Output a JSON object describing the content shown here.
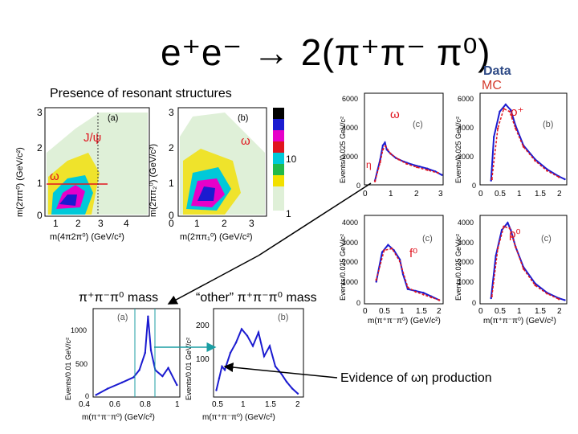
{
  "title": "e⁺e⁻ → 2(π⁺π⁻ π⁰)",
  "legend": {
    "data": "Data",
    "mc": "MC"
  },
  "subtitle": "Presence of resonant structures",
  "annotations": {
    "jpsi": "J/ψ",
    "omega_left": "ω",
    "omega_mid": "ω",
    "omega_right": "ω",
    "rho_plus": "ρ⁺",
    "rho_zero": "ρ⁰",
    "f0": "f⁰",
    "eta_cut": "η",
    "three_pi_mass": "π⁺π⁻π⁰ mass",
    "other_three_pi_mass": "“other” π⁺π⁻π⁰ mass",
    "evidence": "Evidence of ωη production"
  },
  "colors": {
    "data_blue": "#1b1bd0",
    "mc_red": "#e0141e",
    "arrow": "#000000",
    "teal_arrow": "#1b9ea3"
  },
  "chart_data": [
    {
      "type": "heatmap",
      "panel_label": "(a)",
      "xlabel": "m(4π2π⁰) (GeV/c²)",
      "ylabel": "m(2ππ⁰) (GeV/c²)",
      "xlim": [
        0.5,
        4.5
      ],
      "ylim": [
        0,
        3.2
      ],
      "x_ticks": [
        "1",
        "2",
        "3",
        "4"
      ],
      "y_ticks": [
        "0",
        "1",
        "2",
        "3"
      ]
    },
    {
      "type": "heatmap",
      "panel_label": "(b)",
      "xlabel": "m(2ππ₁⁰) (GeV/c²)",
      "ylabel": "m(2ππ₂⁰) (GeV/c²)",
      "xlim": [
        0,
        3.3
      ],
      "ylim": [
        0,
        3.2
      ],
      "x_ticks": [
        "0",
        "1",
        "2",
        "3"
      ],
      "y_ticks": [
        "0",
        "1",
        "2",
        "3"
      ],
      "colorbar_ticks": [
        "10",
        "1"
      ]
    },
    {
      "type": "line",
      "panel_label": "(c)",
      "ylabel": "Events/0.025 GeV/c²",
      "xlim": [
        0,
        3
      ],
      "ylim": [
        0,
        6500
      ],
      "x_ticks": [
        "0",
        "1",
        "2",
        "3"
      ],
      "y_ticks": [
        "0",
        "2000",
        "4000",
        "6000"
      ],
      "series": [
        {
          "name": "Data",
          "x": [
            0.4,
            0.6,
            0.7,
            0.78,
            0.85,
            1.0,
            1.2,
            1.5,
            1.8,
            2.1,
            2.4,
            2.7,
            2.95
          ],
          "y": [
            300,
            1800,
            2800,
            3000,
            2500,
            2200,
            1900,
            1650,
            1450,
            1300,
            1150,
            950,
            700
          ]
        },
        {
          "name": "MC",
          "x": [
            0.4,
            0.6,
            0.7,
            0.8,
            1.0,
            1.3,
            1.6,
            2.0,
            2.4,
            2.8
          ],
          "y": [
            250,
            1600,
            2500,
            2750,
            2200,
            1800,
            1500,
            1250,
            1050,
            850
          ]
        }
      ]
    },
    {
      "type": "line",
      "panel_label": "(b)",
      "ylabel": "Events/0.025 GeV/c²",
      "xlim": [
        0,
        2.2
      ],
      "ylim": [
        0,
        6500
      ],
      "x_ticks": [
        "0",
        "0.5",
        "1",
        "1.5",
        "2"
      ],
      "y_ticks": [
        "0",
        "2000",
        "4000",
        "6000"
      ],
      "series": [
        {
          "name": "Data",
          "x": [
            0.28,
            0.35,
            0.5,
            0.65,
            0.78,
            0.9,
            1.1,
            1.4,
            1.7,
            2.0,
            2.15
          ],
          "y": [
            300,
            3400,
            5200,
            5700,
            5300,
            4200,
            2800,
            1800,
            1100,
            600,
            400
          ]
        },
        {
          "name": "MC",
          "x": [
            0.3,
            0.45,
            0.6,
            0.75,
            0.9,
            1.1,
            1.4,
            1.7,
            2.0
          ],
          "y": [
            400,
            4000,
            5400,
            5200,
            4000,
            2700,
            1700,
            1000,
            550
          ]
        }
      ]
    },
    {
      "type": "line",
      "panel_label": "(c)",
      "ylabel": "Events/0.025 GeV/c²",
      "xlim": [
        0,
        2
      ],
      "ylim": [
        0,
        4800
      ],
      "x_ticks": [
        "0",
        "0.5",
        "1",
        "1.5",
        "2"
      ],
      "y_ticks": [
        "0",
        "1000",
        "2000",
        "3000",
        "4000"
      ],
      "series": [
        {
          "name": "Data",
          "x": [
            0.3,
            0.45,
            0.6,
            0.75,
            0.9,
            0.98,
            1.1,
            1.3,
            1.5,
            1.7,
            1.9
          ],
          "y": [
            1200,
            2800,
            3200,
            2900,
            2400,
            1600,
            800,
            700,
            600,
            400,
            200
          ]
        },
        {
          "name": "MC",
          "x": [
            0.3,
            0.5,
            0.7,
            0.9,
            1.1,
            1.3,
            1.5,
            1.7,
            1.9
          ],
          "y": [
            1300,
            2900,
            3000,
            2300,
            900,
            650,
            500,
            350,
            200
          ]
        }
      ]
    },
    {
      "type": "line",
      "panel_label": "(c)",
      "ylabel": "Events/0.025 GeV/c²",
      "xlim": [
        0,
        2.2
      ],
      "ylim": [
        0,
        4800
      ],
      "x_ticks": [
        "0",
        "0.5",
        "1",
        "1.5",
        "2"
      ],
      "y_ticks": [
        "0",
        "1000",
        "2000",
        "3000",
        "4000"
      ],
      "series": [
        {
          "name": "Data",
          "x": [
            0.28,
            0.4,
            0.55,
            0.7,
            0.78,
            0.9,
            1.1,
            1.4,
            1.7,
            2.0,
            2.15
          ],
          "y": [
            300,
            2600,
            4000,
            4400,
            4000,
            3100,
            2000,
            1100,
            600,
            300,
            200
          ]
        },
        {
          "name": "MC",
          "x": [
            0.3,
            0.45,
            0.6,
            0.75,
            0.9,
            1.1,
            1.4,
            1.7,
            2.0
          ],
          "y": [
            400,
            3000,
            4200,
            4100,
            3100,
            1900,
            1000,
            550,
            250
          ]
        }
      ]
    },
    {
      "type": "line",
      "panel_label": "(a)",
      "xlabel": "m(π⁺π⁻π⁰) (GeV/c²)",
      "ylabel": "Events/0.01 GeV/c²",
      "xlim": [
        0.4,
        1.0
      ],
      "ylim": [
        0,
        1700
      ],
      "x_ticks": [
        "0.4",
        "0.6",
        "0.8",
        "1"
      ],
      "y_ticks": [
        "0",
        "500",
        "1000"
      ],
      "series": [
        {
          "name": "Data",
          "x": [
            0.42,
            0.5,
            0.6,
            0.68,
            0.72,
            0.76,
            0.78,
            0.8,
            0.83,
            0.88,
            0.92,
            0.98
          ],
          "y": [
            40,
            160,
            280,
            380,
            520,
            850,
            1550,
            900,
            520,
            400,
            560,
            230
          ]
        }
      ]
    },
    {
      "type": "line",
      "panel_label": "(b)",
      "xlabel": "m(π⁺π⁻π⁰) (GeV/c²)",
      "ylabel": "Events/0.01 GeV/c²",
      "xlim": [
        0.4,
        2.0
      ],
      "ylim": [
        0,
        260
      ],
      "x_ticks": [
        "0.5",
        "1",
        "1.5",
        "2"
      ],
      "y_ticks": [
        "100",
        "200"
      ],
      "series": [
        {
          "name": "Data",
          "x": [
            0.45,
            0.5,
            0.55,
            0.6,
            0.7,
            0.8,
            0.9,
            1.0,
            1.1,
            1.2,
            1.3,
            1.4,
            1.5,
            1.6,
            1.7,
            1.8,
            1.9
          ],
          "y": [
            20,
            55,
            90,
            80,
            130,
            160,
            200,
            180,
            150,
            190,
            120,
            150,
            90,
            70,
            45,
            25,
            10
          ]
        }
      ]
    }
  ]
}
